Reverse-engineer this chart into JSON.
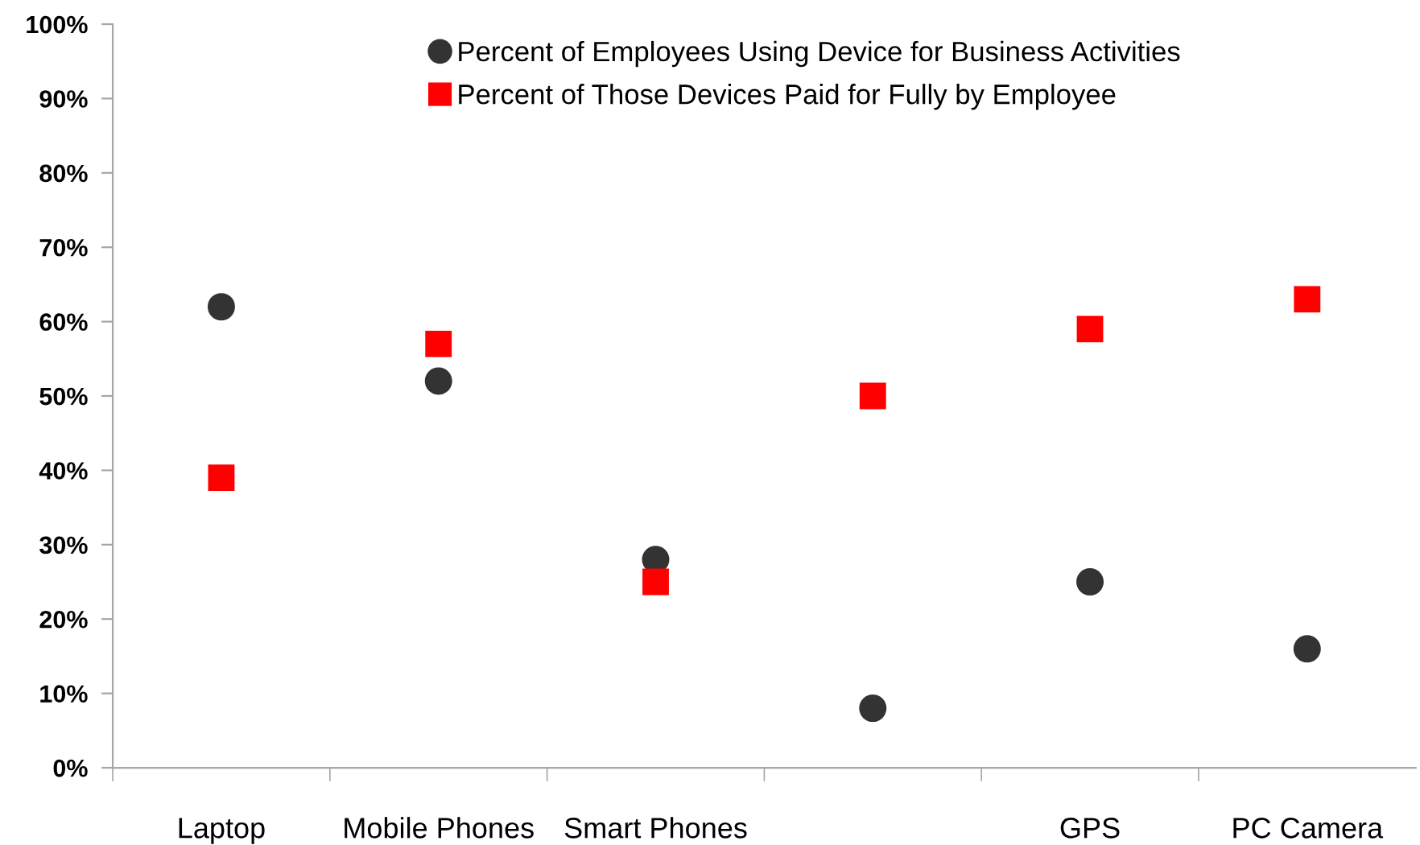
{
  "chart_data": {
    "type": "scatter",
    "categories": [
      "Laptop",
      "Mobile Phones",
      "Smart Phones",
      null,
      "GPS",
      "PC Camera"
    ],
    "series": [
      {
        "name": "Percent of Employees Using Device for Business Activities",
        "color": "#333333",
        "marker": "circle",
        "values": [
          62,
          52,
          28,
          8,
          25,
          16
        ]
      },
      {
        "name": "Percent of Those Devices Paid for Fully by Employee",
        "color": "#ff0000",
        "marker": "square",
        "values": [
          39,
          57,
          25,
          50,
          59,
          63
        ]
      }
    ],
    "ylim": [
      0,
      100
    ],
    "yticks": [
      {
        "value": 0,
        "label": "0%"
      },
      {
        "value": 10,
        "label": "10%"
      },
      {
        "value": 20,
        "label": "20%"
      },
      {
        "value": 30,
        "label": "30%"
      },
      {
        "value": 40,
        "label": "40%"
      },
      {
        "value": 50,
        "label": "50%"
      },
      {
        "value": 60,
        "label": "60%"
      },
      {
        "value": 70,
        "label": "70%"
      },
      {
        "value": 80,
        "label": "80%"
      },
      {
        "value": 90,
        "label": "90%"
      },
      {
        "value": 100,
        "label": "100%"
      }
    ],
    "legend": "top",
    "grid": false
  }
}
